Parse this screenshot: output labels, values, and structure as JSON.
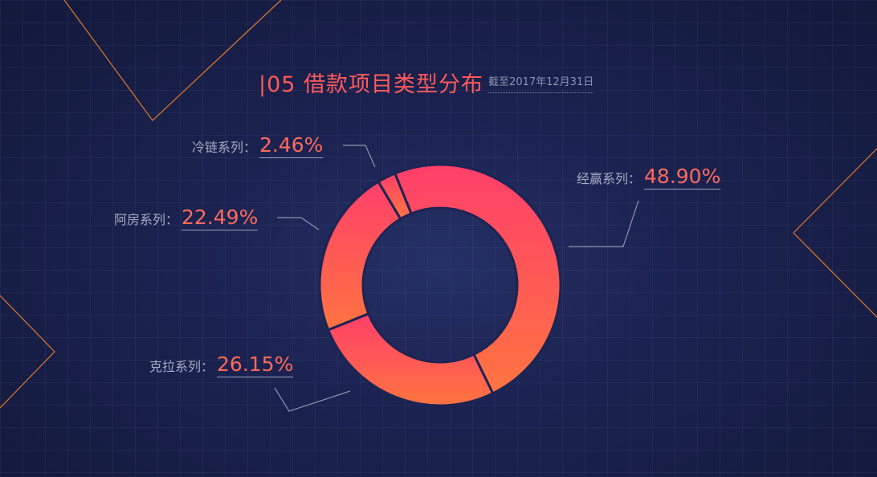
{
  "title": "|05 借款项目类型分布",
  "subtitle": "截至2017年12月31日",
  "colors": {
    "accent": "#ff5a5a",
    "leader": "#8e93ab",
    "decoLine": "#e0782c"
  },
  "chart_data": {
    "type": "pie",
    "donut": true,
    "title": "|05 借款项目类型分布",
    "subtitle": "截至2017年12月31日",
    "slices": [
      {
        "name": "经赢系列：",
        "value": 48.9,
        "label": "48.90%",
        "color": "#ff5f55"
      },
      {
        "name": "克拉系列：",
        "value": 26.15,
        "label": "26.15%",
        "color": "#ff6a4a"
      },
      {
        "name": "阿房系列：",
        "value": 22.49,
        "label": "22.49%",
        "color": "#ff5460"
      },
      {
        "name": "冷链系列：",
        "value": 2.46,
        "label": "2.46%",
        "color": "#ff4f66"
      }
    ]
  }
}
